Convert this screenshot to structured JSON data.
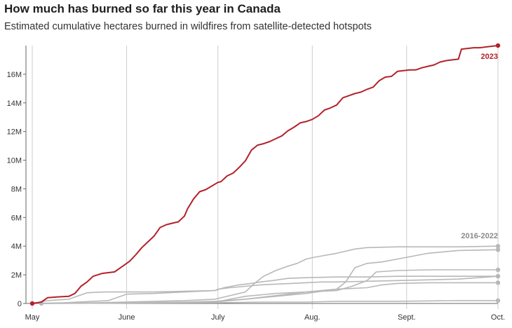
{
  "chart_data": {
    "type": "line",
    "title": "How much has burned so far this year in Canada",
    "subtitle": "Estimated cumulative hectares burned in wildfires from satellite-detected hotspots",
    "xlabel": "",
    "ylabel": "",
    "x_ticks": [
      {
        "day": 0,
        "label": "May"
      },
      {
        "day": 31,
        "label": "June"
      },
      {
        "day": 61,
        "label": "July"
      },
      {
        "day": 92,
        "label": "Aug."
      },
      {
        "day": 123,
        "label": "Sept."
      },
      {
        "day": 153,
        "label": "Oct."
      }
    ],
    "y_ticks": [
      {
        "value": 0,
        "label": "0"
      },
      {
        "value": 2,
        "label": "2M"
      },
      {
        "value": 4,
        "label": "4M"
      },
      {
        "value": 6,
        "label": "6M"
      },
      {
        "value": 8,
        "label": "8M"
      },
      {
        "value": 10,
        "label": "10M"
      },
      {
        "value": 12,
        "label": "12M"
      },
      {
        "value": 14,
        "label": "14M"
      },
      {
        "value": 16,
        "label": "16M"
      }
    ],
    "xlim": [
      0,
      153
    ],
    "ylim": [
      0,
      18
    ],
    "highlight_label": "2023",
    "context_label": "2016-2022",
    "colors": {
      "highlight": "#b3222b",
      "context": "#b8b8b8",
      "grid": "#cccccc",
      "axis": "#666666"
    },
    "series": [
      {
        "name": "2023",
        "highlight": true,
        "points": [
          [
            0,
            0
          ],
          [
            3,
            0.1
          ],
          [
            5,
            0.4
          ],
          [
            8,
            0.45
          ],
          [
            12,
            0.5
          ],
          [
            14,
            0.7
          ],
          [
            16,
            1.2
          ],
          [
            18,
            1.5
          ],
          [
            20,
            1.9
          ],
          [
            23,
            2.1
          ],
          [
            25,
            2.15
          ],
          [
            27,
            2.2
          ],
          [
            29,
            2.5
          ],
          [
            31,
            2.8
          ],
          [
            32,
            2.95
          ],
          [
            34,
            3.4
          ],
          [
            36,
            3.9
          ],
          [
            38,
            4.3
          ],
          [
            40,
            4.7
          ],
          [
            42,
            5.3
          ],
          [
            44,
            5.5
          ],
          [
            46,
            5.6
          ],
          [
            48,
            5.7
          ],
          [
            50,
            6.1
          ],
          [
            51,
            6.6
          ],
          [
            53,
            7.3
          ],
          [
            55,
            7.8
          ],
          [
            57,
            7.95
          ],
          [
            59,
            8.2
          ],
          [
            61,
            8.45
          ],
          [
            62,
            8.5
          ],
          [
            64,
            8.9
          ],
          [
            66,
            9.1
          ],
          [
            68,
            9.5
          ],
          [
            70,
            9.95
          ],
          [
            72,
            10.7
          ],
          [
            74,
            11.05
          ],
          [
            76,
            11.15
          ],
          [
            78,
            11.3
          ],
          [
            80,
            11.5
          ],
          [
            82,
            11.7
          ],
          [
            84,
            12.05
          ],
          [
            86,
            12.3
          ],
          [
            88,
            12.6
          ],
          [
            90,
            12.7
          ],
          [
            92,
            12.85
          ],
          [
            94,
            13.1
          ],
          [
            96,
            13.5
          ],
          [
            98,
            13.65
          ],
          [
            100,
            13.85
          ],
          [
            102,
            14.35
          ],
          [
            104,
            14.5
          ],
          [
            106,
            14.65
          ],
          [
            108,
            14.75
          ],
          [
            110,
            14.95
          ],
          [
            112,
            15.1
          ],
          [
            114,
            15.55
          ],
          [
            116,
            15.8
          ],
          [
            118,
            15.85
          ],
          [
            120,
            16.2
          ],
          [
            122,
            16.25
          ],
          [
            124,
            16.3
          ],
          [
            126,
            16.3
          ],
          [
            128,
            16.45
          ],
          [
            130,
            16.55
          ],
          [
            132,
            16.65
          ],
          [
            134,
            16.85
          ],
          [
            136,
            16.95
          ],
          [
            138,
            17.0
          ],
          [
            140,
            17.05
          ],
          [
            141,
            17.75
          ],
          [
            143,
            17.8
          ],
          [
            145,
            17.85
          ],
          [
            147,
            17.85
          ],
          [
            149,
            17.9
          ],
          [
            151,
            17.95
          ],
          [
            153,
            18.0
          ]
        ]
      },
      {
        "highlight": false,
        "points": [
          [
            0,
            0
          ],
          [
            5,
            0.2
          ],
          [
            12,
            0.3
          ],
          [
            18,
            0.75
          ],
          [
            24,
            0.8
          ],
          [
            31,
            0.8
          ],
          [
            40,
            0.8
          ],
          [
            50,
            0.85
          ],
          [
            60,
            0.9
          ],
          [
            61,
            1.0
          ],
          [
            65,
            1.1
          ],
          [
            70,
            1.2
          ],
          [
            75,
            1.3
          ],
          [
            80,
            1.35
          ],
          [
            85,
            1.4
          ],
          [
            90,
            1.45
          ],
          [
            95,
            1.5
          ],
          [
            100,
            1.5
          ],
          [
            110,
            1.55
          ],
          [
            120,
            1.6
          ],
          [
            130,
            1.65
          ],
          [
            140,
            1.7
          ],
          [
            153,
            1.9
          ]
        ]
      },
      {
        "highlight": false,
        "points": [
          [
            0,
            0
          ],
          [
            10,
            0.05
          ],
          [
            15,
            0.1
          ],
          [
            25,
            0.2
          ],
          [
            31,
            0.65
          ],
          [
            40,
            0.7
          ],
          [
            50,
            0.8
          ],
          [
            60,
            0.9
          ],
          [
            63,
            1.1
          ],
          [
            68,
            1.3
          ],
          [
            72,
            1.4
          ],
          [
            75,
            1.5
          ],
          [
            79,
            1.6
          ],
          [
            84,
            1.75
          ],
          [
            90,
            1.8
          ],
          [
            100,
            1.85
          ],
          [
            110,
            1.85
          ],
          [
            120,
            1.9
          ],
          [
            130,
            1.9
          ],
          [
            140,
            1.9
          ],
          [
            153,
            1.9
          ]
        ]
      },
      {
        "highlight": false,
        "points": [
          [
            0,
            0
          ],
          [
            20,
            0.05
          ],
          [
            30,
            0.1
          ],
          [
            40,
            0.15
          ],
          [
            50,
            0.2
          ],
          [
            60,
            0.3
          ],
          [
            70,
            0.8
          ],
          [
            73,
            1.4
          ],
          [
            76,
            1.9
          ],
          [
            80,
            2.3
          ],
          [
            84,
            2.6
          ],
          [
            87,
            2.8
          ],
          [
            90,
            3.1
          ],
          [
            92,
            3.2
          ],
          [
            96,
            3.35
          ],
          [
            100,
            3.5
          ],
          [
            106,
            3.8
          ],
          [
            110,
            3.9
          ],
          [
            120,
            3.95
          ],
          [
            130,
            3.95
          ],
          [
            140,
            3.95
          ],
          [
            153,
            4.0
          ]
        ]
      },
      {
        "highlight": false,
        "points": [
          [
            0,
            0
          ],
          [
            30,
            0.05
          ],
          [
            50,
            0.1
          ],
          [
            60,
            0.15
          ],
          [
            70,
            0.3
          ],
          [
            80,
            0.5
          ],
          [
            90,
            0.7
          ],
          [
            100,
            1.0
          ],
          [
            103,
            1.5
          ],
          [
            106,
            2.5
          ],
          [
            110,
            2.8
          ],
          [
            115,
            2.9
          ],
          [
            120,
            3.1
          ],
          [
            125,
            3.3
          ],
          [
            130,
            3.5
          ],
          [
            135,
            3.6
          ],
          [
            140,
            3.7
          ],
          [
            153,
            3.75
          ]
        ]
      },
      {
        "highlight": false,
        "points": [
          [
            0,
            0
          ],
          [
            40,
            0.05
          ],
          [
            60,
            0.1
          ],
          [
            70,
            0.3
          ],
          [
            80,
            0.55
          ],
          [
            90,
            0.8
          ],
          [
            100,
            0.9
          ],
          [
            105,
            1.2
          ],
          [
            110,
            1.6
          ],
          [
            113,
            2.2
          ],
          [
            120,
            2.3
          ],
          [
            130,
            2.35
          ],
          [
            140,
            2.35
          ],
          [
            153,
            2.35
          ]
        ]
      },
      {
        "highlight": false,
        "points": [
          [
            0,
            0
          ],
          [
            40,
            0.05
          ],
          [
            60,
            0.1
          ],
          [
            70,
            0.5
          ],
          [
            80,
            0.7
          ],
          [
            90,
            0.8
          ],
          [
            100,
            1.0
          ],
          [
            110,
            1.1
          ],
          [
            115,
            1.3
          ],
          [
            120,
            1.4
          ],
          [
            130,
            1.45
          ],
          [
            140,
            1.45
          ],
          [
            153,
            1.45
          ]
        ]
      },
      {
        "highlight": false,
        "points": [
          [
            0,
            0
          ],
          [
            60,
            0.05
          ],
          [
            75,
            0.1
          ],
          [
            90,
            0.1
          ],
          [
            100,
            0.15
          ],
          [
            120,
            0.15
          ],
          [
            140,
            0.2
          ],
          [
            153,
            0.2
          ]
        ]
      }
    ]
  }
}
